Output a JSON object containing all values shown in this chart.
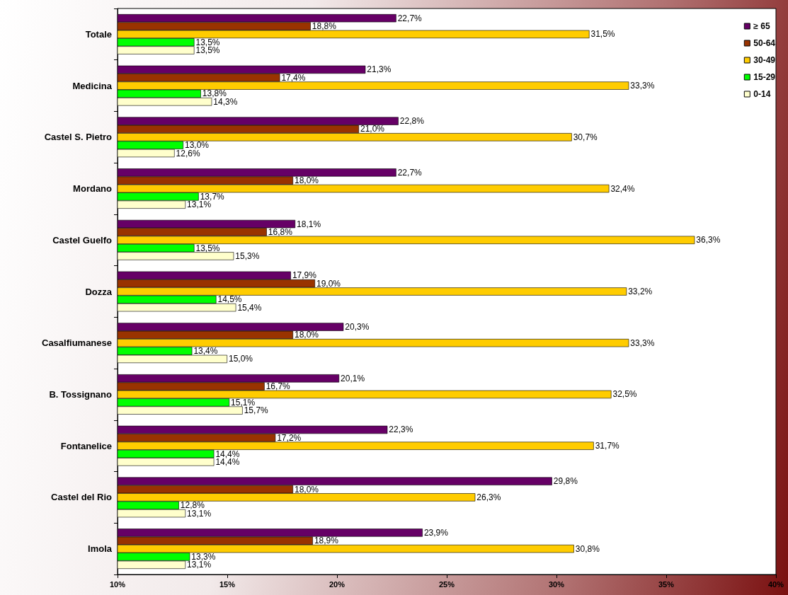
{
  "chart_data": {
    "type": "bar",
    "orientation": "horizontal",
    "categories": [
      "Totale",
      "Medicina",
      "Castel S. Pietro",
      "Mordano",
      "Castel Guelfo",
      "Dozza",
      "Casalfiumanese",
      "B. Tossignano",
      "Fontanelice",
      "Castel del Rio",
      "Imola"
    ],
    "series": [
      {
        "name": "≥ 65",
        "color": "#660066",
        "values": [
          22.7,
          21.3,
          22.8,
          22.7,
          18.1,
          17.9,
          20.3,
          20.1,
          22.3,
          29.8,
          23.9
        ],
        "value_labels": [
          "22,7%",
          "21,3%",
          "22,8%",
          "22,7%",
          "18,1%",
          "17,9%",
          "20,3%",
          "20,1%",
          "22,3%",
          "29,8%",
          "23,9%"
        ]
      },
      {
        "name": "50-64",
        "color": "#993300",
        "values": [
          18.8,
          17.4,
          21.0,
          18.0,
          16.8,
          19.0,
          18.0,
          16.7,
          17.2,
          18.0,
          18.9
        ],
        "value_labels": [
          "18,8%",
          "17,4%",
          "21,0%",
          "18,0%",
          "16,8%",
          "19,0%",
          "18,0%",
          "16,7%",
          "17,2%",
          "18,0%",
          "18,9%"
        ]
      },
      {
        "name": "30-49",
        "color": "#ffcc00",
        "values": [
          31.5,
          33.3,
          30.7,
          32.4,
          36.3,
          33.2,
          33.3,
          32.5,
          31.7,
          26.3,
          30.8
        ],
        "value_labels": [
          "31,5%",
          "33,3%",
          "30,7%",
          "32,4%",
          "36,3%",
          "33,2%",
          "33,3%",
          "32,5%",
          "31,7%",
          "26,3%",
          "30,8%"
        ]
      },
      {
        "name": "15-29",
        "color": "#00ff00",
        "values": [
          13.5,
          13.8,
          13.0,
          13.7,
          13.5,
          14.5,
          13.4,
          15.1,
          14.4,
          12.8,
          13.3
        ],
        "value_labels": [
          "13,5%",
          "13,8%",
          "13,0%",
          "13,7%",
          "13,5%",
          "14,5%",
          "13,4%",
          "15,1%",
          "14,4%",
          "12,8%",
          "13,3%"
        ]
      },
      {
        "name": "0-14",
        "color": "#ffffcc",
        "values": [
          13.5,
          14.3,
          12.6,
          13.1,
          15.3,
          15.4,
          15.0,
          15.7,
          14.4,
          13.1,
          13.1
        ],
        "value_labels": [
          "13,5%",
          "14,3%",
          "12,6%",
          "13,1%",
          "15,3%",
          "15,4%",
          "15,0%",
          "15,7%",
          "14,4%",
          "13,1%",
          "13,1%"
        ]
      }
    ],
    "xlim": [
      10,
      40
    ],
    "xticks": [
      {
        "value": 10,
        "label": "10%"
      },
      {
        "value": 15,
        "label": "15%"
      },
      {
        "value": 20,
        "label": "20%"
      },
      {
        "value": 25,
        "label": "25%"
      },
      {
        "value": 30,
        "label": "30%"
      },
      {
        "value": 35,
        "label": "35%"
      },
      {
        "value": 40,
        "label": "40%"
      }
    ],
    "grid": false,
    "legend": "top right"
  }
}
